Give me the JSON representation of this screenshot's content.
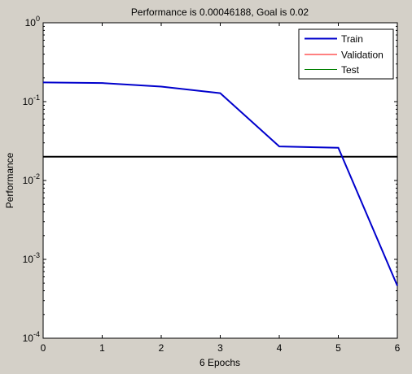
{
  "chart_data": {
    "type": "line",
    "title": "Performance is 0.00046188, Goal is 0.02",
    "xlabel": "6 Epochs",
    "ylabel": "Performance",
    "xlim": [
      0,
      6
    ],
    "ylim": [
      0.0001,
      1
    ],
    "yscale": "log",
    "x_ticks": [
      "0",
      "1",
      "2",
      "3",
      "4",
      "5",
      "6"
    ],
    "y_ticks": [
      {
        "base": "10",
        "exp": "0",
        "value": 1
      },
      {
        "base": "10",
        "exp": "-1",
        "value": 0.1
      },
      {
        "base": "10",
        "exp": "-2",
        "value": 0.01
      },
      {
        "base": "10",
        "exp": "-3",
        "value": 0.001
      },
      {
        "base": "10",
        "exp": "-4",
        "value": 0.0001
      }
    ],
    "series": [
      {
        "name": "Train",
        "color": "#0000cc",
        "x": [
          0,
          1,
          2,
          3,
          4,
          5,
          6
        ],
        "y": [
          0.175,
          0.172,
          0.155,
          0.128,
          0.027,
          0.026,
          0.00046188
        ]
      },
      {
        "name": "Validation",
        "color": "#ff0000",
        "x": [],
        "y": []
      },
      {
        "name": "Test",
        "color": "#008000",
        "x": [],
        "y": []
      }
    ],
    "goal": {
      "value": 0.02,
      "color": "#000000"
    },
    "grid": false,
    "legend_position": "top-right"
  }
}
